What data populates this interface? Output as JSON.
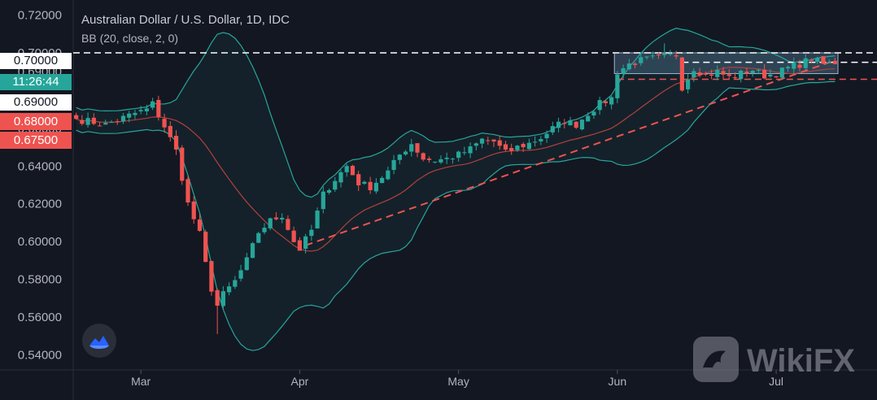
{
  "header": {
    "title": "Australian Dollar / U.S. Dollar, 1D, IDC",
    "indicator": "BB (20, close, 2, 0)"
  },
  "badges": {
    "price_level": "0.70000",
    "countdown": "11:26:44",
    "level_690": "0.69000",
    "level_680": "0.68000",
    "level_675": "0.67500"
  },
  "watermark": {
    "text": "WikiFX"
  },
  "colors": {
    "background": "#131722",
    "up": "#26a69a",
    "down": "#ef5350",
    "bands": "#26a69a",
    "basis": "#b2403c",
    "trendline": "#ef5350",
    "axis_text": "#b2b5be"
  },
  "chart_data": {
    "type": "candlestick",
    "title": "Australian Dollar / U.S. Dollar, 1D, IDC",
    "ylim": [
      0.532,
      0.728
    ],
    "y_ticks": [
      "0.72000",
      "0.70000",
      "0.69000",
      "0.66000",
      "0.64000",
      "0.62000",
      "0.60000",
      "0.58000",
      "0.56000",
      "0.54000"
    ],
    "y_tick_values": [
      0.72,
      0.7,
      0.69,
      0.66,
      0.64,
      0.62,
      0.6,
      0.58,
      0.56,
      0.54
    ],
    "x_ticks": [
      {
        "label": "Mar",
        "index": 11
      },
      {
        "label": "Apr",
        "index": 38
      },
      {
        "label": "May",
        "index": 65
      },
      {
        "label": "Jun",
        "index": 92
      },
      {
        "label": "Jul",
        "index": 119
      }
    ],
    "x_count": 130,
    "anchors_close": [
      [
        0,
        0.665
      ],
      [
        5,
        0.662
      ],
      [
        10,
        0.668
      ],
      [
        12,
        0.67
      ],
      [
        13,
        0.673
      ],
      [
        15,
        0.661
      ],
      [
        17,
        0.648
      ],
      [
        19,
        0.62
      ],
      [
        21,
        0.604
      ],
      [
        22,
        0.588
      ],
      [
        23,
        0.575
      ],
      [
        24,
        0.566
      ],
      [
        25,
        0.572
      ],
      [
        27,
        0.579
      ],
      [
        29,
        0.59
      ],
      [
        31,
        0.605
      ],
      [
        33,
        0.611
      ],
      [
        35,
        0.614
      ],
      [
        37,
        0.6
      ],
      [
        38,
        0.596
      ],
      [
        40,
        0.606
      ],
      [
        42,
        0.625
      ],
      [
        44,
        0.633
      ],
      [
        46,
        0.64
      ],
      [
        48,
        0.631
      ],
      [
        50,
        0.629
      ],
      [
        53,
        0.637
      ],
      [
        55,
        0.646
      ],
      [
        57,
        0.652
      ],
      [
        59,
        0.644
      ],
      [
        61,
        0.643
      ],
      [
        63,
        0.644
      ],
      [
        65,
        0.646
      ],
      [
        67,
        0.649
      ],
      [
        69,
        0.654
      ],
      [
        71,
        0.653
      ],
      [
        73,
        0.647
      ],
      [
        75,
        0.65
      ],
      [
        77,
        0.652
      ],
      [
        79,
        0.655
      ],
      [
        81,
        0.66
      ],
      [
        83,
        0.664
      ],
      [
        85,
        0.662
      ],
      [
        87,
        0.668
      ],
      [
        89,
        0.673
      ],
      [
        91,
        0.676
      ],
      [
        92,
        0.69
      ],
      [
        94,
        0.694
      ],
      [
        96,
        0.696
      ],
      [
        98,
        0.697
      ],
      [
        100,
        0.698
      ],
      [
        102,
        0.699
      ],
      [
        103,
        0.682
      ],
      [
        105,
        0.692
      ],
      [
        107,
        0.688
      ],
      [
        109,
        0.69
      ],
      [
        111,
        0.687
      ],
      [
        113,
        0.689
      ],
      [
        115,
        0.691
      ],
      [
        117,
        0.688
      ],
      [
        119,
        0.689
      ],
      [
        121,
        0.692
      ],
      [
        123,
        0.694
      ],
      [
        125,
        0.697
      ],
      [
        127,
        0.694
      ],
      [
        129,
        0.695
      ]
    ],
    "extremes": {
      "min_low": 0.551,
      "max_high": 0.705
    },
    "bollinger": {
      "period": 20,
      "mult": 2
    },
    "range_box": {
      "from_index": 92,
      "to_index": 129,
      "top": 0.7,
      "bottom": 0.689
    },
    "levels": [
      {
        "value": 0.7,
        "style": "dashed",
        "color": "#ffffff"
      },
      {
        "value": 0.695,
        "style": "dashed",
        "color": "#ffffff",
        "from_index": 103
      },
      {
        "value": 0.686,
        "style": "dashed",
        "color": "#ef5350",
        "from_index": 92
      }
    ],
    "trendlines": [
      {
        "from": [
          39,
          0.598
        ],
        "to": [
          129,
          0.696
        ]
      }
    ]
  }
}
